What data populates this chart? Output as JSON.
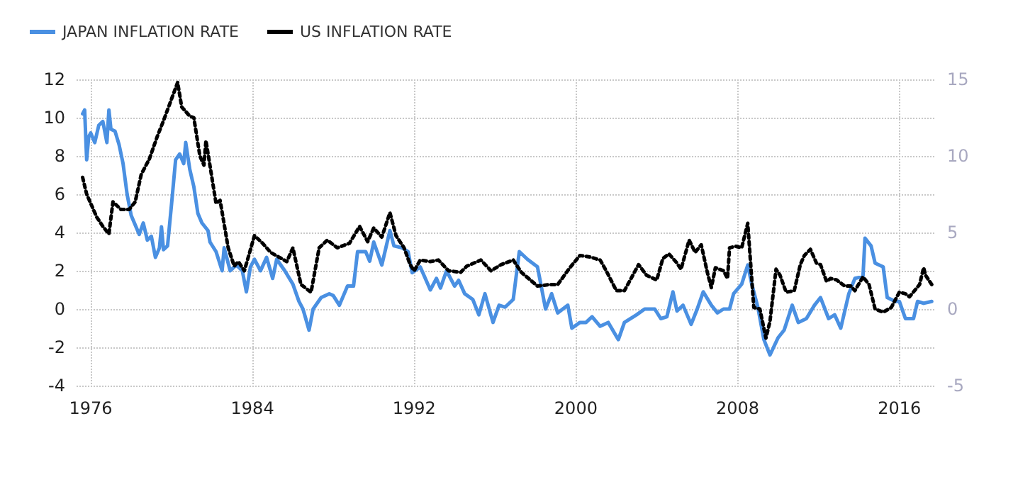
{
  "chart_data": {
    "type": "line",
    "xlim": [
      1975.3,
      2017.8
    ],
    "xticks": [
      1976,
      1984,
      1992,
      2000,
      2008,
      2016
    ],
    "ylim": [
      -4,
      12
    ],
    "yticks": [
      -4,
      -2,
      0,
      2,
      4,
      6,
      8,
      10,
      12
    ],
    "y2lim": [
      -5,
      15
    ],
    "y2ticks": [
      -5,
      0,
      5,
      10,
      15
    ],
    "grid": true,
    "legend": "top left",
    "marker": "none",
    "series": [
      {
        "name": "JAPAN INFLATION RATE",
        "color": "#4a90e2",
        "line_style": "solid",
        "x": [
          1975.6,
          1975.7,
          1975.8,
          1975.9,
          1976.0,
          1976.2,
          1976.4,
          1976.6,
          1976.8,
          1976.9,
          1977.0,
          1977.2,
          1977.4,
          1977.6,
          1977.8,
          1978.0,
          1978.2,
          1978.4,
          1978.6,
          1978.8,
          1979.0,
          1979.2,
          1979.4,
          1979.5,
          1979.6,
          1979.8,
          1980.0,
          1980.2,
          1980.4,
          1980.6,
          1980.7,
          1980.9,
          1981.1,
          1981.3,
          1981.5,
          1981.8,
          1981.9,
          1982.2,
          1982.5,
          1982.6,
          1982.9,
          1983.2,
          1983.5,
          1983.7,
          1983.9,
          1984.1,
          1984.4,
          1984.7,
          1985.0,
          1985.2,
          1985.6,
          1986.0,
          1986.3,
          1986.5,
          1986.8,
          1987.0,
          1987.4,
          1987.8,
          1988.0,
          1988.3,
          1988.7,
          1989.0,
          1989.2,
          1989.6,
          1989.8,
          1990.0,
          1990.4,
          1990.6,
          1990.8,
          1991.0,
          1991.4,
          1991.7,
          1991.9,
          1992.3,
          1992.8,
          1993.1,
          1993.3,
          1993.6,
          1994.0,
          1994.2,
          1994.5,
          1994.9,
          1995.2,
          1995.5,
          1995.9,
          1996.2,
          1996.5,
          1996.9,
          1997.2,
          1997.6,
          1998.1,
          1998.5,
          1998.8,
          1999.1,
          1999.6,
          1999.8,
          2000.2,
          2000.5,
          2000.8,
          2001.2,
          2001.6,
          2002.1,
          2002.4,
          2003.0,
          2003.4,
          2003.9,
          2004.2,
          2004.5,
          2004.8,
          2005.0,
          2005.3,
          2005.7,
          2006.0,
          2006.3,
          2006.7,
          2007.0,
          2007.3,
          2007.6,
          2007.8,
          2008.2,
          2008.5,
          2008.7,
          2009.0,
          2009.3,
          2009.6,
          2010.0,
          2010.3,
          2010.7,
          2011.0,
          2011.4,
          2011.8,
          2012.1,
          2012.5,
          2012.8,
          2013.1,
          2013.5,
          2013.8,
          2014.2,
          2014.3,
          2014.6,
          2014.8,
          2015.2,
          2015.4,
          2015.8,
          2016.0,
          2016.3,
          2016.7,
          2016.9,
          2017.2,
          2017.6
        ],
        "values": [
          10.2,
          10.4,
          7.8,
          9.0,
          9.2,
          8.7,
          9.6,
          9.8,
          8.7,
          10.4,
          9.4,
          9.3,
          8.6,
          7.6,
          6.0,
          4.9,
          4.4,
          3.9,
          4.5,
          3.6,
          3.8,
          2.7,
          3.2,
          4.3,
          3.1,
          3.3,
          5.5,
          7.8,
          8.1,
          7.6,
          8.7,
          7.3,
          6.4,
          5.0,
          4.5,
          4.1,
          3.5,
          3.0,
          2.0,
          3.2,
          2.0,
          2.3,
          2.0,
          0.9,
          2.2,
          2.6,
          2.0,
          2.7,
          1.6,
          2.6,
          2.0,
          1.3,
          0.4,
          0.0,
          -1.1,
          0.0,
          0.6,
          0.8,
          0.7,
          0.2,
          1.2,
          1.2,
          3.0,
          3.0,
          2.5,
          3.5,
          2.3,
          3.2,
          4.1,
          3.3,
          3.2,
          3.0,
          1.9,
          2.2,
          1.0,
          1.6,
          1.1,
          2.0,
          1.2,
          1.5,
          0.8,
          0.5,
          -0.3,
          0.8,
          -0.7,
          0.2,
          0.1,
          0.5,
          3.0,
          2.6,
          2.2,
          0.0,
          0.8,
          -0.2,
          0.2,
          -1.0,
          -0.7,
          -0.7,
          -0.4,
          -0.9,
          -0.7,
          -1.6,
          -0.7,
          -0.3,
          0.0,
          0.0,
          -0.5,
          -0.4,
          0.9,
          -0.1,
          0.2,
          -0.8,
          0.0,
          0.9,
          0.2,
          -0.2,
          0.0,
          0.0,
          0.8,
          1.3,
          2.3,
          1.3,
          0.1,
          -1.6,
          -2.4,
          -1.5,
          -1.1,
          0.2,
          -0.7,
          -0.5,
          0.2,
          0.6,
          -0.5,
          -0.3,
          -1.0,
          0.8,
          1.6,
          1.7,
          3.7,
          3.3,
          2.4,
          2.2,
          0.6,
          0.4,
          0.4,
          -0.5,
          -0.5,
          0.4,
          0.3,
          0.4
        ]
      },
      {
        "name": "US INFLATION RATE",
        "color": "#000000",
        "line_style": "dotted",
        "axis": "y2",
        "x": [
          1975.6,
          1975.8,
          1976.1,
          1976.3,
          1976.6,
          1976.9,
          1977.1,
          1977.5,
          1977.9,
          1978.2,
          1978.5,
          1978.9,
          1979.3,
          1979.6,
          1980.3,
          1980.5,
          1980.9,
          1981.1,
          1981.4,
          1981.6,
          1981.7,
          1982.2,
          1982.4,
          1982.8,
          1983.1,
          1983.3,
          1983.6,
          1984.1,
          1984.5,
          1984.9,
          1985.3,
          1985.7,
          1986.0,
          1986.4,
          1986.9,
          1987.3,
          1987.7,
          1988.2,
          1988.8,
          1989.3,
          1989.7,
          1990.0,
          1990.4,
          1990.8,
          1991.1,
          1991.5,
          1991.8,
          1992.0,
          1992.3,
          1992.8,
          1993.2,
          1993.7,
          1994.3,
          1994.6,
          1995.3,
          1995.8,
          1996.3,
          1996.9,
          1997.3,
          1998.1,
          1998.7,
          1999.1,
          1999.7,
          2000.2,
          2000.7,
          2001.2,
          2001.5,
          2002.0,
          2002.4,
          2003.1,
          2003.5,
          2004.0,
          2004.3,
          2004.6,
          2005.0,
          2005.2,
          2005.6,
          2005.9,
          2006.2,
          2006.5,
          2006.7,
          2006.9,
          2007.3,
          2007.5,
          2007.6,
          2007.9,
          2008.2,
          2008.5,
          2008.8,
          2009.1,
          2009.4,
          2009.6,
          2009.9,
          2010.1,
          2010.4,
          2010.8,
          2011.1,
          2011.3,
          2011.6,
          2011.9,
          2012.1,
          2012.4,
          2012.6,
          2012.9,
          2013.3,
          2013.6,
          2013.8,
          2014.2,
          2014.5,
          2014.8,
          2015.2,
          2015.6,
          2016.0,
          2016.3,
          2016.5,
          2017.0,
          2017.2,
          2017.3,
          2017.6
        ],
        "values": [
          8.6,
          7.5,
          6.6,
          6.0,
          5.4,
          4.9,
          7.0,
          6.5,
          6.5,
          7.0,
          8.8,
          9.8,
          11.3,
          12.3,
          14.8,
          13.2,
          12.6,
          12.5,
          10.0,
          9.4,
          11.0,
          6.9,
          7.1,
          4.0,
          2.8,
          3.1,
          2.5,
          4.8,
          4.3,
          3.7,
          3.4,
          3.1,
          4.0,
          1.6,
          1.1,
          4.0,
          4.5,
          4.0,
          4.3,
          5.4,
          4.4,
          5.3,
          4.7,
          6.3,
          4.8,
          4.0,
          2.9,
          2.5,
          3.2,
          3.1,
          3.2,
          2.5,
          2.4,
          2.8,
          3.2,
          2.5,
          2.9,
          3.2,
          2.4,
          1.5,
          1.6,
          1.6,
          2.7,
          3.5,
          3.4,
          3.2,
          2.5,
          1.2,
          1.2,
          2.9,
          2.2,
          1.9,
          3.3,
          3.6,
          3.0,
          2.6,
          4.5,
          3.7,
          4.2,
          2.4,
          1.4,
          2.7,
          2.5,
          2.0,
          4.0,
          4.1,
          4.0,
          5.6,
          0.1,
          0.0,
          -1.9,
          -0.8,
          2.6,
          2.2,
          1.1,
          1.2,
          2.9,
          3.5,
          3.9,
          3.0,
          2.9,
          1.8,
          2.0,
          1.9,
          1.5,
          1.5,
          1.2,
          2.1,
          1.6,
          0.0,
          -0.2,
          0.1,
          1.1,
          1.0,
          0.8,
          1.6,
          2.7,
          2.2,
          1.6
        ]
      }
    ]
  }
}
